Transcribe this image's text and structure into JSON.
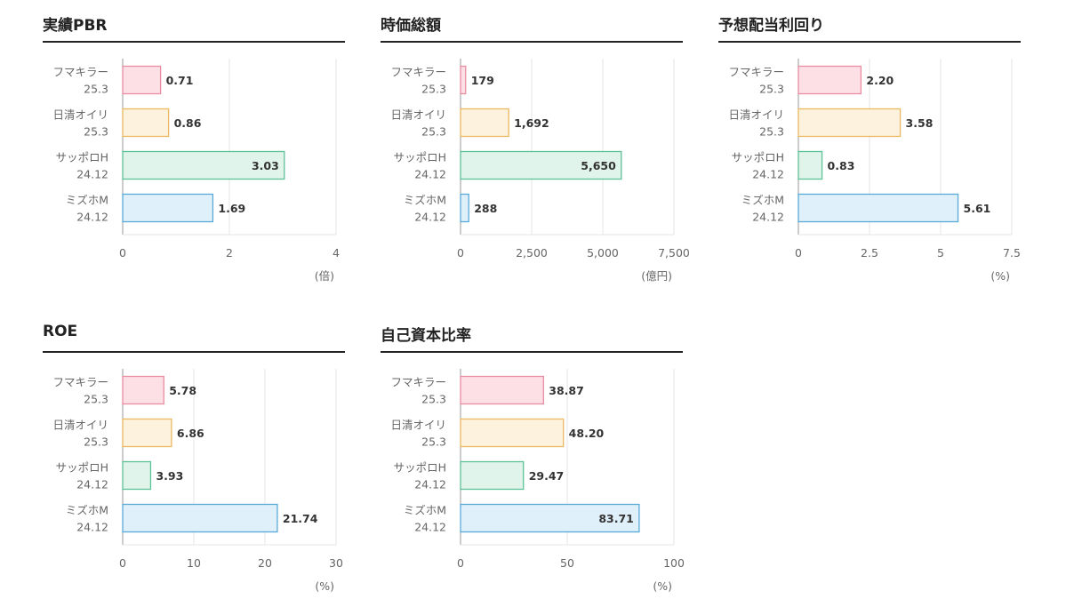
{
  "categories": [
    {
      "name": "フマキラー",
      "period": "25.3"
    },
    {
      "name": "日清オイリ",
      "period": "25.3"
    },
    {
      "name": "サッポロH",
      "period": "24.12"
    },
    {
      "name": "ミズホM",
      "period": "24.12"
    }
  ],
  "colors": {
    "fills": [
      "#fde0e6",
      "#fdf2dd",
      "#e1f4ec",
      "#e0f0fa"
    ],
    "strokes": [
      "#e88ca2",
      "#ecb862",
      "#5dc196",
      "#5aaad8"
    ],
    "grid": "#e6e6e6",
    "axis": "#999999"
  },
  "chart_data": [
    {
      "type": "bar",
      "title": "実績PBR",
      "unit": "(倍)",
      "values": [
        0.71,
        0.86,
        3.03,
        1.69
      ],
      "value_labels": [
        "0.71",
        "0.86",
        "3.03",
        "1.69"
      ],
      "xlim": [
        0,
        4
      ],
      "ticks": [
        0,
        2,
        4
      ],
      "tick_labels": [
        "0",
        "2",
        "4"
      ],
      "grid": true
    },
    {
      "type": "bar",
      "title": "時価総額",
      "unit": "(億円)",
      "values": [
        179,
        1692,
        5650,
        288
      ],
      "value_labels": [
        "179",
        "1,692",
        "5,650",
        "288"
      ],
      "xlim": [
        0,
        7500
      ],
      "ticks": [
        0,
        2500,
        5000,
        7500
      ],
      "tick_labels": [
        "0",
        "2,500",
        "5,000",
        "7,500"
      ],
      "grid": true
    },
    {
      "type": "bar",
      "title": "予想配当利回り",
      "unit": "(%)",
      "values": [
        2.2,
        3.58,
        0.83,
        5.61
      ],
      "value_labels": [
        "2.20",
        "3.58",
        "0.83",
        "5.61"
      ],
      "xlim": [
        0,
        7.5
      ],
      "ticks": [
        0,
        2.5,
        5,
        7.5
      ],
      "tick_labels": [
        "0",
        "2.5",
        "5",
        "7.5"
      ],
      "grid": true
    },
    {
      "type": "bar",
      "title": "ROE",
      "unit": "(%)",
      "values": [
        5.78,
        6.86,
        3.93,
        21.74
      ],
      "value_labels": [
        "5.78",
        "6.86",
        "3.93",
        "21.74"
      ],
      "xlim": [
        0,
        30
      ],
      "ticks": [
        0,
        10,
        20,
        30
      ],
      "tick_labels": [
        "0",
        "10",
        "20",
        "30"
      ],
      "grid": true
    },
    {
      "type": "bar",
      "title": "自己資本比率",
      "unit": "(%)",
      "values": [
        38.87,
        48.2,
        29.47,
        83.71
      ],
      "value_labels": [
        "38.87",
        "48.20",
        "29.47",
        "83.71"
      ],
      "xlim": [
        0,
        100
      ],
      "ticks": [
        0,
        50,
        100
      ],
      "tick_labels": [
        "0",
        "50",
        "100"
      ],
      "grid": true
    }
  ]
}
